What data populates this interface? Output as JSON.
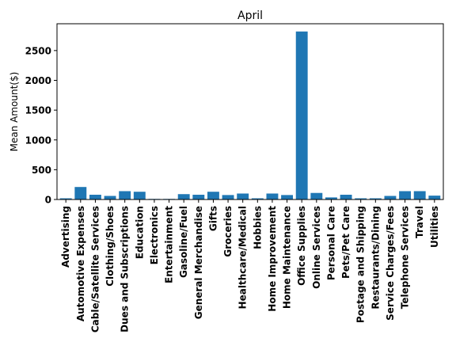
{
  "chart_data": {
    "type": "bar",
    "title": "April",
    "xlabel": "",
    "ylabel": "Mean Amount($)",
    "ylim": [
      0,
      2950
    ],
    "yticks": [
      0,
      500,
      1000,
      1500,
      2000,
      2500
    ],
    "grid": false,
    "categories": [
      "Advertising",
      "Automotive Expenses",
      "Cable/Satellite Services",
      "Clothing/Shoes",
      "Dues and Subscriptions",
      "Education",
      "Electronics",
      "Entertainment",
      "Gasoline/Fuel",
      "General Merchandise",
      "Gifts",
      "Groceries",
      "Healthcare/Medical",
      "Hobbies",
      "Home Improvement",
      "Home Maintenance",
      "Office Supplies",
      "Online Services",
      "Personal Care",
      "Pets/Pet Care",
      "Postage and Shipping",
      "Restaurants/Dining",
      "Service Charges/Fees",
      "Telephone Services",
      "Travel",
      "Utilities"
    ],
    "values": [
      20,
      210,
      80,
      60,
      140,
      130,
      10,
      10,
      90,
      80,
      130,
      75,
      100,
      20,
      100,
      75,
      2820,
      110,
      35,
      80,
      20,
      20,
      60,
      140,
      140,
      65
    ],
    "bar_color": "#1f77b4"
  }
}
